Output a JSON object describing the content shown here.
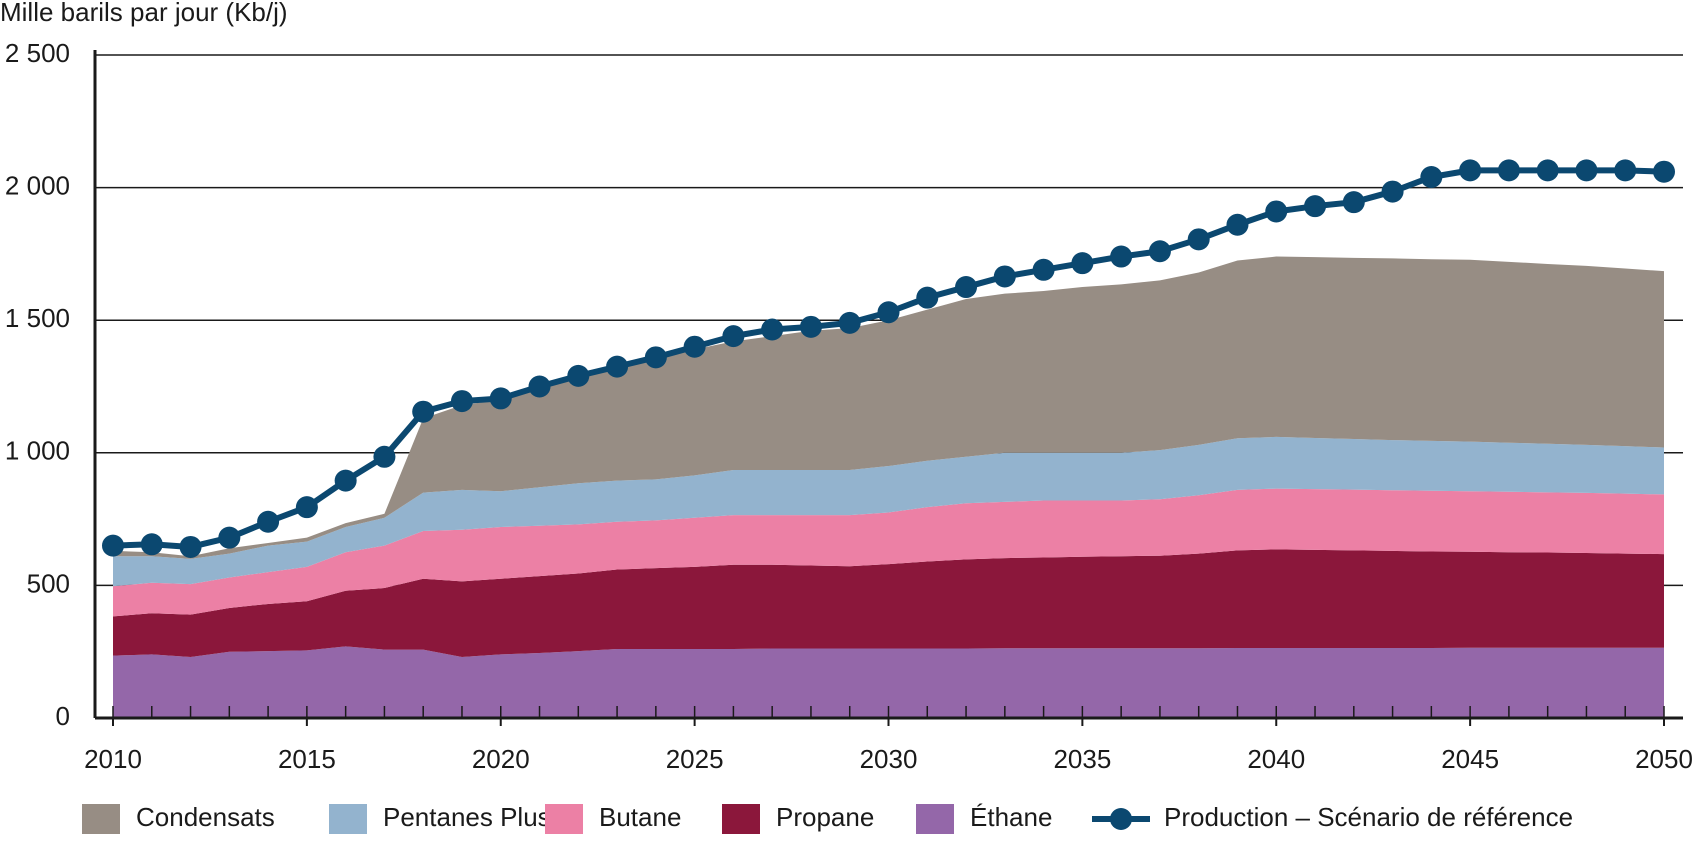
{
  "chart_data": {
    "type": "area",
    "y_axis_label": "Mille barils par jour (Kb/j)",
    "x": [
      2010,
      2011,
      2012,
      2013,
      2014,
      2015,
      2016,
      2017,
      2018,
      2019,
      2020,
      2021,
      2022,
      2023,
      2024,
      2025,
      2026,
      2027,
      2028,
      2029,
      2030,
      2031,
      2032,
      2033,
      2034,
      2035,
      2036,
      2037,
      2038,
      2039,
      2040,
      2041,
      2042,
      2043,
      2044,
      2045,
      2046,
      2047,
      2048,
      2049,
      2050
    ],
    "xlim": [
      2010,
      2050
    ],
    "xticks": [
      2010,
      2015,
      2020,
      2025,
      2030,
      2035,
      2040,
      2045,
      2050
    ],
    "ylim": [
      0,
      2500
    ],
    "yticks": [
      0,
      500,
      {
        "value": 1000,
        "label": "1 000"
      },
      {
        "value": 1500,
        "label": "1 500"
      },
      {
        "value": 2000,
        "label": "2 000"
      },
      {
        "value": 2500,
        "label": "2 500"
      }
    ],
    "grid": true,
    "stacked": true,
    "series": [
      {
        "name": "Condensats",
        "type": "area",
        "color": "#978d84",
        "values": [
          20,
          15,
          10,
          20,
          10,
          15,
          15,
          15,
          280,
          320,
          345,
          370,
          395,
          425,
          450,
          475,
          485,
          505,
          525,
          535,
          550,
          570,
          595,
          600,
          610,
          625,
          635,
          640,
          650,
          670,
          680,
          682,
          683,
          685,
          685,
          686,
          682,
          678,
          675,
          670,
          665
        ]
      },
      {
        "name": "Pentanes Plus",
        "type": "area",
        "color": "#93b3ce",
        "values": [
          113,
          100,
          95,
          90,
          100,
          95,
          95,
          105,
          145,
          150,
          135,
          145,
          155,
          155,
          155,
          160,
          170,
          170,
          170,
          170,
          175,
          175,
          175,
          185,
          180,
          180,
          180,
          185,
          190,
          195,
          195,
          193,
          191,
          189,
          188,
          187,
          185,
          183,
          181,
          179,
          177
        ]
      },
      {
        "name": "Butane",
        "type": "area",
        "color": "#ec80a5",
        "values": [
          114,
          115,
          115,
          115,
          120,
          130,
          145,
          160,
          180,
          195,
          195,
          190,
          185,
          180,
          180,
          185,
          187,
          187,
          190,
          193,
          195,
          205,
          212,
          212,
          215,
          212,
          210,
          213,
          220,
          228,
          229,
          229,
          229,
          229,
          229,
          228,
          228,
          227,
          227,
          226,
          225
        ]
      },
      {
        "name": "Propane",
        "type": "area",
        "color": "#8b173b",
        "values": [
          148,
          155,
          160,
          165,
          178,
          185,
          210,
          232,
          267,
          285,
          285,
          290,
          293,
          300,
          305,
          310,
          318,
          316,
          313,
          310,
          318,
          328,
          336,
          340,
          342,
          345,
          347,
          349,
          357,
          368,
          372,
          370,
          368,
          366,
          364,
          362,
          360,
          359,
          357,
          355,
          353
        ]
      },
      {
        "name": "Éthane",
        "type": "area",
        "color": "#9467a9",
        "values": [
          235,
          240,
          230,
          250,
          252,
          255,
          270,
          258,
          258,
          230,
          240,
          245,
          252,
          260,
          260,
          260,
          260,
          262,
          262,
          262,
          262,
          262,
          262,
          263,
          263,
          263,
          263,
          263,
          263,
          264,
          264,
          264,
          264,
          264,
          264,
          265,
          265,
          265,
          265,
          265,
          265
        ]
      },
      {
        "name": "Production – Scénario de référence",
        "type": "line",
        "color": "#0b4870",
        "values": [
          650,
          655,
          645,
          680,
          740,
          795,
          895,
          985,
          1155,
          1195,
          1205,
          1250,
          1290,
          1325,
          1360,
          1400,
          1440,
          1465,
          1475,
          1490,
          1530,
          1585,
          1625,
          1665,
          1690,
          1715,
          1740,
          1760,
          1805,
          1860,
          1910,
          1930,
          1945,
          1985,
          2040,
          2065,
          2065,
          2065,
          2065,
          2065,
          2060
        ]
      }
    ]
  }
}
